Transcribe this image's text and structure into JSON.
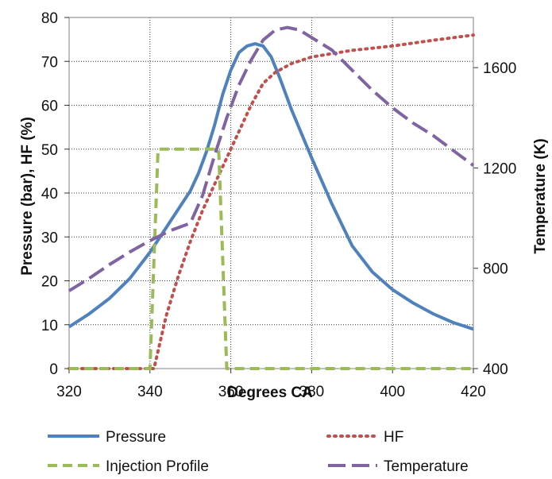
{
  "chart_data": {
    "type": "line",
    "title": "",
    "xlabel": "Degrees CA",
    "ylabel": "Pressure (bar), HF (%)",
    "y2label": "Temperature (K)",
    "xlim": [
      320,
      420
    ],
    "ylim": [
      0,
      80
    ],
    "y2lim": [
      400,
      1800
    ],
    "x_ticks": [
      "320",
      "340",
      "360",
      "380",
      "400",
      "420"
    ],
    "y_ticks": [
      "0",
      "10",
      "20",
      "30",
      "40",
      "50",
      "60",
      "70",
      "80"
    ],
    "y2_ticks": [
      "400",
      "800",
      "1200",
      "1600"
    ],
    "grid": "dotted vertical and horizontal",
    "legend_position": "bottom",
    "series": [
      {
        "name": "Pressure",
        "axis": "left",
        "color": "#4f81bd",
        "style": "solid",
        "x": [
          320,
          325,
          330,
          335,
          340,
          345,
          350,
          352,
          354,
          356,
          358,
          360,
          362,
          364,
          366,
          368,
          370,
          372,
          375,
          380,
          385,
          390,
          395,
          400,
          405,
          410,
          415,
          420
        ],
        "y": [
          9.5,
          12.5,
          16,
          20.5,
          26.5,
          33.5,
          40.5,
          44.5,
          49.5,
          55.5,
          62.5,
          68,
          72,
          73.5,
          74,
          73.5,
          71,
          66.5,
          59,
          48,
          37.5,
          28,
          22,
          18,
          15,
          12.5,
          10.5,
          9
        ]
      },
      {
        "name": "HF",
        "axis": "left",
        "color": "#c0504d",
        "style": "dotted",
        "x": [
          320,
          330,
          340,
          341,
          344,
          347,
          350,
          353,
          356,
          359,
          362,
          365,
          368,
          371,
          375,
          380,
          390,
          400,
          410,
          420
        ],
        "y": [
          0,
          0,
          0,
          0,
          12,
          21,
          29,
          36,
          42,
          48,
          54,
          60,
          65,
          67.5,
          69.5,
          71,
          72.5,
          73.5,
          74.8,
          76
        ]
      },
      {
        "name": "Injection Profile",
        "axis": "left",
        "color": "#9bbb59",
        "style": "dashed",
        "x": [
          320,
          340,
          342,
          357,
          359,
          420
        ],
        "y": [
          0,
          0,
          50,
          50,
          0,
          0
        ]
      },
      {
        "name": "Temperature",
        "axis": "right",
        "color": "#8064a2",
        "style": "long-dash",
        "x": [
          320,
          325,
          330,
          335,
          340,
          345,
          350,
          353,
          356,
          359,
          362,
          365,
          368,
          371,
          374,
          377,
          380,
          385,
          390,
          395,
          400,
          405,
          410,
          415,
          420
        ],
        "y": [
          710,
          760,
          815,
          865,
          910,
          950,
          980,
          1090,
          1250,
          1400,
          1530,
          1630,
          1710,
          1750,
          1760,
          1750,
          1720,
          1670,
          1590,
          1510,
          1440,
          1380,
          1330,
          1270,
          1210
        ]
      }
    ]
  }
}
